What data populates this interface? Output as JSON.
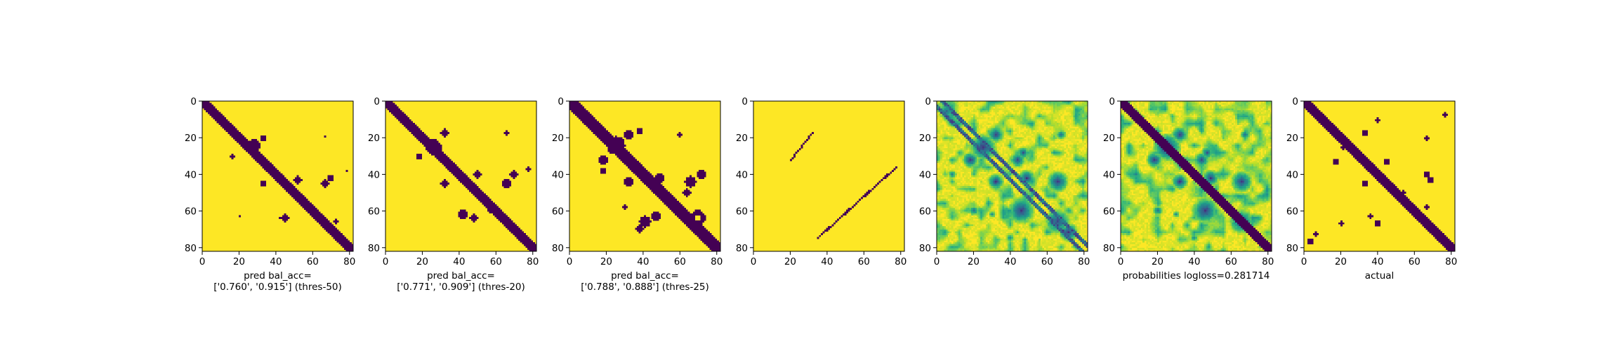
{
  "colors": {
    "background": "#ffffff",
    "low": "#440154",
    "high": "#fde725",
    "viridis": [
      "#440154",
      "#482777",
      "#3e4989",
      "#31688e",
      "#26828e",
      "#1f9e89",
      "#35b779",
      "#6ece58",
      "#b5de2b",
      "#fde725"
    ]
  },
  "chart_data": [
    {
      "type": "heatmap",
      "title": "",
      "caption_lines": [
        "pred bal_acc=",
        "['0.760', '0.915'] (thres-50)"
      ],
      "xticks": [
        0,
        20,
        40,
        60,
        80
      ],
      "yticks": [
        0,
        20,
        40,
        60,
        80
      ],
      "xlim": [
        0,
        82
      ],
      "ylim": [
        82,
        0
      ],
      "matrix_size": 83,
      "value_scale": "binary",
      "diagonal_band": {
        "present": true,
        "width": 3
      },
      "blobs": [
        {
          "i": 24,
          "j": 28,
          "r": 3.2,
          "v": 0
        },
        {
          "i": 20,
          "j": 33,
          "r": 1.6,
          "v": 0
        },
        {
          "i": 30,
          "j": 16,
          "r": 1.4,
          "v": 0
        },
        {
          "i": 45,
          "j": 33,
          "r": 1.7,
          "v": 0
        },
        {
          "i": 43,
          "j": 52,
          "r": 2.0,
          "v": 0
        },
        {
          "i": 45,
          "j": 67,
          "r": 2.2,
          "v": 0
        },
        {
          "i": 42,
          "j": 70,
          "r": 1.5,
          "v": 0
        },
        {
          "i": 64,
          "j": 45,
          "r": 2.0,
          "v": 0
        },
        {
          "i": 63,
          "j": 20,
          "r": 0.9,
          "v": 0
        },
        {
          "i": 64,
          "j": 42,
          "r": 0.9,
          "v": 0
        },
        {
          "i": 19,
          "j": 67,
          "r": 0.9,
          "v": 0
        },
        {
          "i": 38,
          "j": 79,
          "r": 0.9,
          "v": 0
        },
        {
          "i": 66,
          "j": 73,
          "r": 1.0,
          "v": 0
        }
      ]
    },
    {
      "type": "heatmap",
      "title": "",
      "caption_lines": [
        "pred bal_acc=",
        "['0.771', '0.909'] (thres-20)"
      ],
      "xticks": [
        0,
        20,
        40,
        60,
        80
      ],
      "yticks": [
        0,
        20,
        40,
        60,
        80
      ],
      "xlim": [
        0,
        82
      ],
      "ylim": [
        82,
        0
      ],
      "matrix_size": 83,
      "value_scale": "binary",
      "diagonal_band": {
        "present": true,
        "width": 3.4
      },
      "blobs": [
        {
          "i": 25,
          "j": 26,
          "r": 4.2,
          "v": 0
        },
        {
          "i": 17,
          "j": 32,
          "r": 2.0,
          "v": 0
        },
        {
          "i": 30,
          "j": 18,
          "r": 1.8,
          "v": 0
        },
        {
          "i": 45,
          "j": 32,
          "r": 2.0,
          "v": 0
        },
        {
          "i": 40,
          "j": 50,
          "r": 2.2,
          "v": 0
        },
        {
          "i": 45,
          "j": 66,
          "r": 2.6,
          "v": 0
        },
        {
          "i": 40,
          "j": 70,
          "r": 2.0,
          "v": 0
        },
        {
          "i": 62,
          "j": 42,
          "r": 2.4,
          "v": 0
        },
        {
          "i": 64,
          "j": 48,
          "r": 2.0,
          "v": 0
        },
        {
          "i": 17,
          "j": 66,
          "r": 1.0,
          "v": 0
        },
        {
          "i": 60,
          "j": 57,
          "r": 1.2,
          "v": 0
        },
        {
          "i": 37,
          "j": 78,
          "r": 1.0,
          "v": 0
        }
      ]
    },
    {
      "type": "heatmap",
      "title": "",
      "caption_lines": [
        "pred bal_acc=",
        "['0.788', '0.888'] (thres-25)"
      ],
      "xticks": [
        0,
        20,
        40,
        60,
        80
      ],
      "yticks": [
        0,
        20,
        40,
        60,
        80
      ],
      "xlim": [
        0,
        82
      ],
      "ylim": [
        82,
        0
      ],
      "matrix_size": 83,
      "value_scale": "binary",
      "diagonal_band": {
        "present": true,
        "width": 4
      },
      "blobs": [
        {
          "i": 24,
          "j": 25,
          "r": 5.0,
          "v": 0
        },
        {
          "i": 18,
          "j": 32,
          "r": 2.5,
          "v": 0
        },
        {
          "i": 32,
          "j": 18,
          "r": 2.3,
          "v": 0
        },
        {
          "i": 16,
          "j": 38,
          "r": 1.6,
          "v": 0
        },
        {
          "i": 38,
          "j": 18,
          "r": 1.6,
          "v": 0
        },
        {
          "i": 44,
          "j": 32,
          "r": 2.3,
          "v": 0
        },
        {
          "i": 42,
          "j": 49,
          "r": 2.5,
          "v": 0
        },
        {
          "i": 44,
          "j": 66,
          "r": 3.0,
          "v": 0
        },
        {
          "i": 40,
          "j": 72,
          "r": 2.4,
          "v": 0
        },
        {
          "i": 50,
          "j": 64,
          "r": 2.0,
          "v": 0
        },
        {
          "i": 66,
          "j": 41,
          "r": 3.0,
          "v": 0
        },
        {
          "i": 63,
          "j": 47,
          "r": 2.5,
          "v": 0
        },
        {
          "i": 70,
          "j": 38,
          "r": 2.0,
          "v": 0
        },
        {
          "i": 64,
          "j": 70,
          "r": 4.2,
          "v": 0
        },
        {
          "i": 64,
          "j": 70,
          "r": 1.8,
          "v": 1
        },
        {
          "i": 18,
          "j": 60,
          "r": 1.2,
          "v": 0
        },
        {
          "i": 58,
          "j": 30,
          "r": 1.2,
          "v": 0
        }
      ]
    },
    {
      "type": "heatmap",
      "title": "",
      "caption_lines": [],
      "xticks": [
        0,
        20,
        40,
        60,
        80
      ],
      "yticks": [
        0,
        20,
        40,
        60,
        80
      ],
      "xlim": [
        0,
        82
      ],
      "ylim": [
        82,
        0
      ],
      "matrix_size": 83,
      "value_scale": "binary",
      "diagonal_band": {
        "present": false,
        "width": 0
      },
      "segments": [
        {
          "x0": 20,
          "y0": 32,
          "x1": 32,
          "y1": 17
        },
        {
          "x0": 35,
          "y0": 75,
          "x1": 78,
          "y1": 36
        }
      ],
      "blobs": []
    },
    {
      "type": "heatmap",
      "title": "",
      "caption_lines": [],
      "xticks": [
        0,
        20,
        40,
        60,
        80
      ],
      "yticks": [
        0,
        20,
        40,
        60,
        80
      ],
      "xlim": [
        0,
        82
      ],
      "ylim": [
        82,
        0
      ],
      "matrix_size": 83,
      "value_scale": "continuous",
      "diagonal_band": {
        "present": false,
        "width": 0
      },
      "off_diagonal_band": {
        "present": true,
        "width": 3,
        "v": 0.15
      },
      "noise": 0.35,
      "blobs": [
        {
          "i": 25,
          "j": 25,
          "r": 5.0,
          "v": 0.1
        },
        {
          "i": 18,
          "j": 32,
          "r": 3.0,
          "v": 0.1
        },
        {
          "i": 32,
          "j": 18,
          "r": 3.0,
          "v": 0.1
        },
        {
          "i": 5,
          "j": 5,
          "r": 4.0,
          "v": 0.3
        },
        {
          "i": 44,
          "j": 32,
          "r": 3.0,
          "v": 0.1
        },
        {
          "i": 32,
          "j": 44,
          "r": 3.0,
          "v": 0.15
        },
        {
          "i": 42,
          "j": 49,
          "r": 3.0,
          "v": 0.1
        },
        {
          "i": 28,
          "j": 47,
          "r": 2.5,
          "v": 0.2
        },
        {
          "i": 44,
          "j": 66,
          "r": 4.0,
          "v": 0.1
        },
        {
          "i": 60,
          "j": 46,
          "r": 5.0,
          "v": 0.1
        },
        {
          "i": 66,
          "j": 66,
          "r": 5.0,
          "v": 0.15
        },
        {
          "i": 72,
          "j": 72,
          "r": 3.5,
          "v": 0.1
        },
        {
          "i": 18,
          "j": 68,
          "r": 2.5,
          "v": 0.3
        },
        {
          "i": 60,
          "j": 20,
          "r": 2.5,
          "v": 0.3
        },
        {
          "i": 62,
          "j": 30,
          "r": 2.0,
          "v": 0.4
        },
        {
          "i": 40,
          "j": 8,
          "r": 2.5,
          "v": 0.4
        },
        {
          "i": 75,
          "j": 40,
          "r": 2.5,
          "v": 0.4
        }
      ]
    },
    {
      "type": "heatmap",
      "title": "",
      "caption_lines": [
        "probabilities logloss=0.281714"
      ],
      "xticks": [
        0,
        20,
        40,
        60,
        80
      ],
      "yticks": [
        0,
        20,
        40,
        60,
        80
      ],
      "xlim": [
        0,
        82
      ],
      "ylim": [
        82,
        0
      ],
      "matrix_size": 83,
      "value_scale": "continuous",
      "diagonal_band": {
        "present": true,
        "width": 3.4
      },
      "noise": 0.35,
      "blobs": [
        {
          "i": 25,
          "j": 25,
          "r": 5.0,
          "v": 0.05
        },
        {
          "i": 18,
          "j": 32,
          "r": 3.0,
          "v": 0.1
        },
        {
          "i": 32,
          "j": 18,
          "r": 3.0,
          "v": 0.1
        },
        {
          "i": 44,
          "j": 32,
          "r": 3.0,
          "v": 0.1
        },
        {
          "i": 32,
          "j": 44,
          "r": 3.0,
          "v": 0.15
        },
        {
          "i": 42,
          "j": 49,
          "r": 3.0,
          "v": 0.1
        },
        {
          "i": 28,
          "j": 47,
          "r": 2.5,
          "v": 0.2
        },
        {
          "i": 44,
          "j": 66,
          "r": 4.0,
          "v": 0.1
        },
        {
          "i": 60,
          "j": 46,
          "r": 5.0,
          "v": 0.1
        },
        {
          "i": 66,
          "j": 66,
          "r": 5.0,
          "v": 0.15
        },
        {
          "i": 18,
          "j": 68,
          "r": 2.5,
          "v": 0.3
        },
        {
          "i": 60,
          "j": 20,
          "r": 2.5,
          "v": 0.3
        },
        {
          "i": 62,
          "j": 30,
          "r": 2.0,
          "v": 0.4
        },
        {
          "i": 40,
          "j": 8,
          "r": 2.5,
          "v": 0.4
        },
        {
          "i": 75,
          "j": 40,
          "r": 2.5,
          "v": 0.4
        }
      ]
    },
    {
      "type": "heatmap",
      "title": "",
      "caption_lines": [
        "actual"
      ],
      "xticks": [
        0,
        20,
        40,
        60,
        80
      ],
      "yticks": [
        0,
        20,
        40,
        60,
        80
      ],
      "xlim": [
        0,
        82
      ],
      "ylim": [
        82,
        0
      ],
      "matrix_size": 83,
      "value_scale": "binary",
      "diagonal_band": {
        "present": true,
        "width": 3.2
      },
      "blobs": [
        {
          "i": 17,
          "j": 33,
          "r": 1.8,
          "v": 0
        },
        {
          "i": 33,
          "j": 17,
          "r": 1.8,
          "v": 0
        },
        {
          "i": 25,
          "j": 21,
          "r": 1.2,
          "v": 0
        },
        {
          "i": 45,
          "j": 33,
          "r": 1.8,
          "v": 0
        },
        {
          "i": 33,
          "j": 45,
          "r": 1.6,
          "v": 0
        },
        {
          "i": 20,
          "j": 67,
          "r": 1.2,
          "v": 0
        },
        {
          "i": 67,
          "j": 20,
          "r": 1.2,
          "v": 0
        },
        {
          "i": 40,
          "j": 67,
          "r": 1.5,
          "v": 0
        },
        {
          "i": 43,
          "j": 69,
          "r": 1.5,
          "v": 0
        },
        {
          "i": 67,
          "j": 40,
          "r": 1.5,
          "v": 0
        },
        {
          "i": 63,
          "j": 36,
          "r": 1.4,
          "v": 0
        },
        {
          "i": 77,
          "j": 3,
          "r": 1.6,
          "v": 0
        },
        {
          "i": 73,
          "j": 6,
          "r": 1.2,
          "v": 0
        },
        {
          "i": 10,
          "j": 40,
          "r": 1.0,
          "v": 0
        },
        {
          "i": 7,
          "j": 77,
          "r": 1.0,
          "v": 0
        },
        {
          "i": 50,
          "j": 54,
          "r": 1.3,
          "v": 0
        },
        {
          "i": 58,
          "j": 67,
          "r": 1.2,
          "v": 0
        }
      ]
    }
  ]
}
